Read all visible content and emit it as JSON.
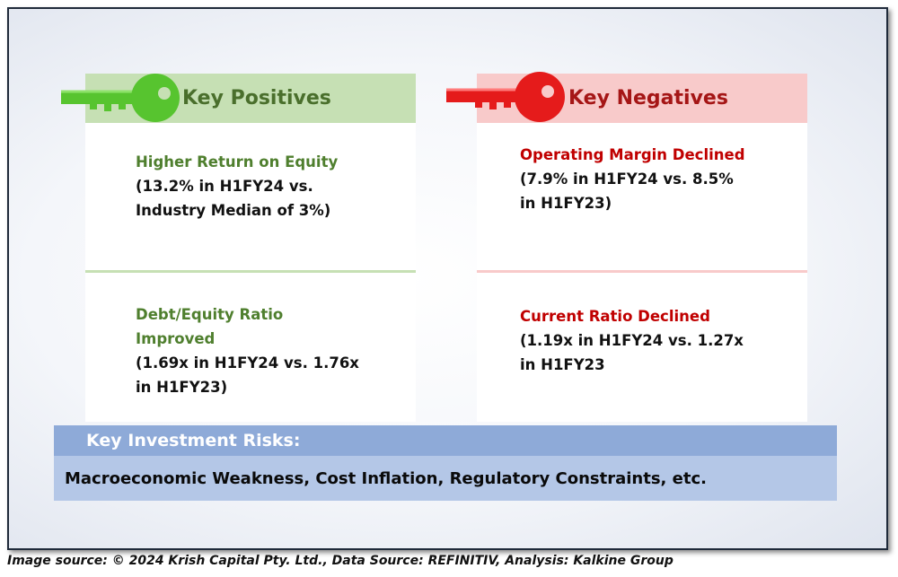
{
  "positives": {
    "title": "Key Positives",
    "items": [
      {
        "title": "Higher Return on Equity",
        "lines": [
          "(13.2% in H1FY24 vs.",
          "Industry Median of 3%)"
        ]
      },
      {
        "title_lines": [
          "Debt/Equity Ratio",
          "Improved"
        ],
        "lines": [
          "(1.69x in H1FY24 vs. 1.76x",
          "in H1FY23)"
        ]
      }
    ]
  },
  "negatives": {
    "title": "Key Negatives",
    "items": [
      {
        "title": "Operating Margin Declined",
        "lines": [
          "(7.9% in H1FY24 vs. 8.5%",
          "in H1FY23)"
        ]
      },
      {
        "title": "Current Ratio Declined",
        "lines": [
          "(1.19x in H1FY24 vs. 1.27x",
          "in H1FY23"
        ]
      }
    ]
  },
  "risks": {
    "title": "Key Investment Risks:",
    "text": "Macroeconomic Weakness, Cost Inflation, Regulatory Constraints, etc."
  },
  "footer": "Image source: © 2024 Krish Capital Pty. Ltd., Data Source: REFINITIV, Analysis: Kalkine Group",
  "colors": {
    "positive_accent": "#4f7f2e",
    "positive_header_bg": "#c6e0b4",
    "key_green": "#57c42f",
    "negative_accent": "#c00000",
    "negative_header_bg": "#f8caca",
    "key_red": "#e51b1b",
    "risk_header_bg": "#8eaad8",
    "risk_body_bg": "#b4c7e7"
  },
  "icons": [
    "green-key-icon",
    "red-key-icon"
  ]
}
